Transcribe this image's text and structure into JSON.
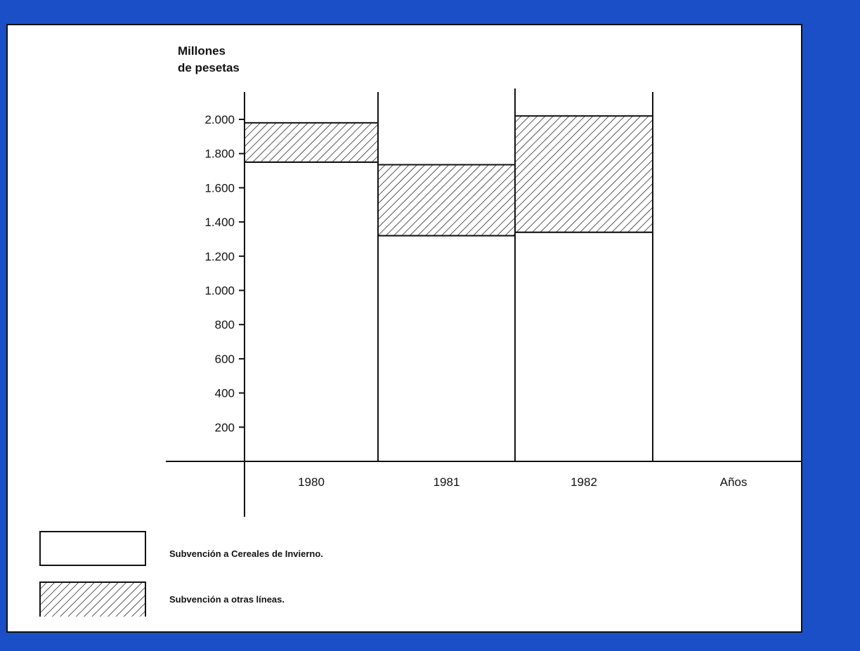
{
  "colors": {
    "background": "#1a4fc8",
    "panel": "#ffffff",
    "ink": "#111111"
  },
  "chart_data": {
    "type": "bar",
    "stacked": true,
    "ylabel_lines": [
      "Millones",
      "de pesetas"
    ],
    "xlabel": "Años",
    "categories": [
      "1980",
      "1981",
      "1982"
    ],
    "series": [
      {
        "name": "Subvención a Cereales de Invierno.",
        "pattern": "solid-white",
        "values": [
          1750,
          1320,
          1340
        ]
      },
      {
        "name": "Subvención a otras líneas.",
        "pattern": "hatched",
        "values": [
          230,
          415,
          680
        ]
      }
    ],
    "y_ticks": [
      200,
      400,
      600,
      800,
      1000,
      1200,
      1400,
      1600,
      1800,
      2000
    ],
    "y_tick_labels": [
      "200",
      "400",
      "600",
      "800",
      "1.000",
      "1.200",
      "1.400",
      "1.600",
      "1.800",
      "2.000"
    ],
    "ylim": [
      0,
      2000
    ],
    "grid": false,
    "legend_position": "bottom-left"
  }
}
